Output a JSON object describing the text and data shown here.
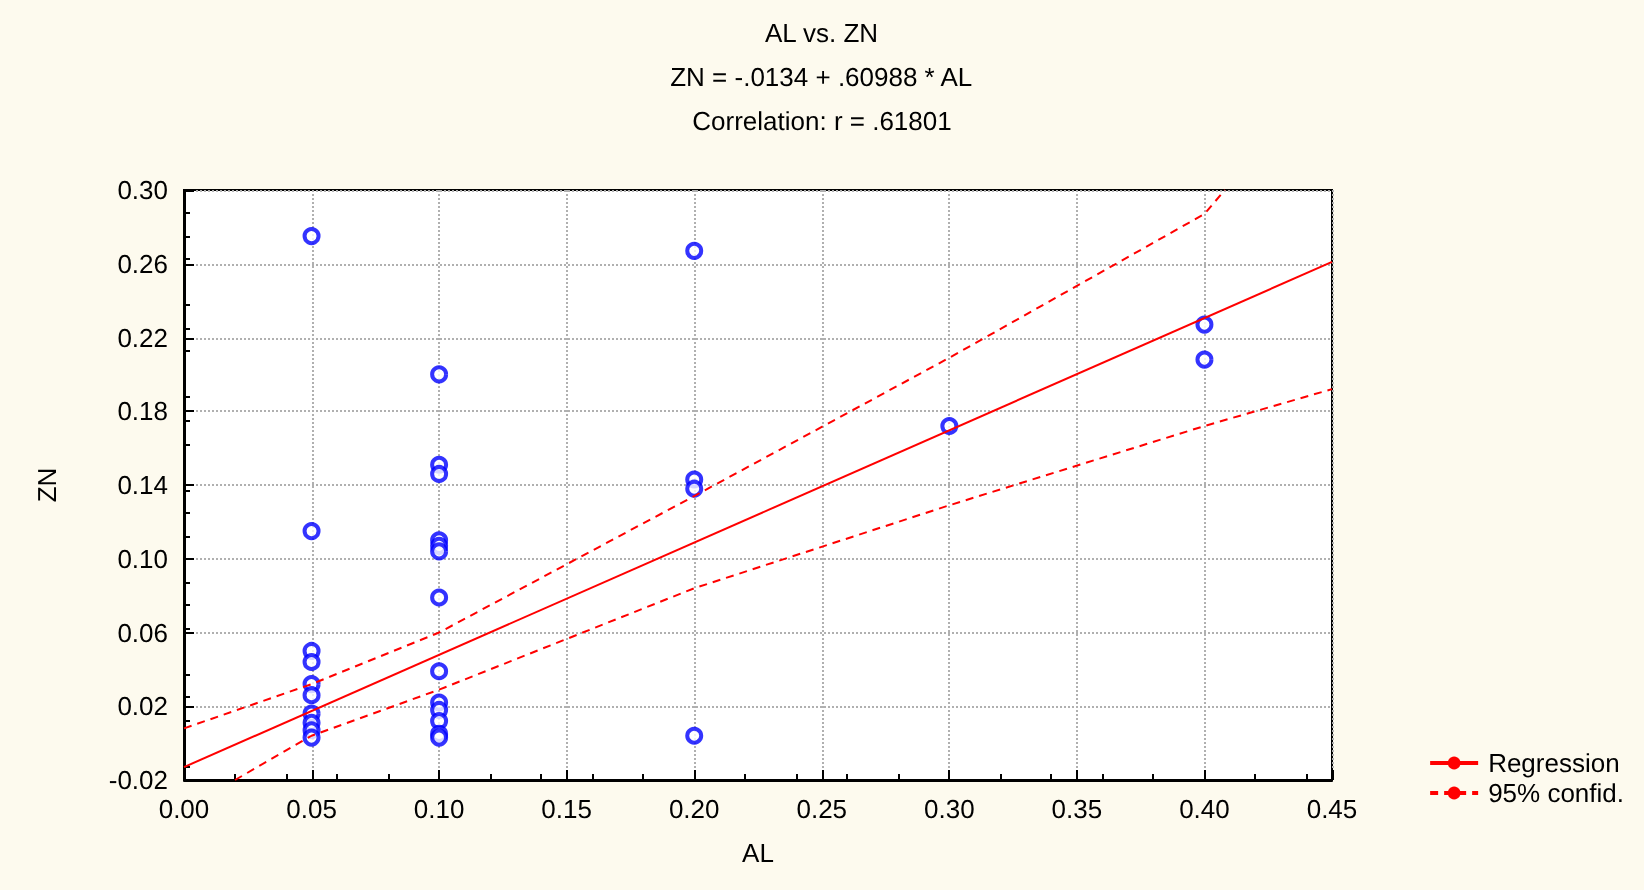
{
  "chart_data": {
    "type": "scatter",
    "title": "AL vs. ZN",
    "subtitle": "ZN = -.0134 + .60988 * AL",
    "annotations": [
      "Correlation: r = .61801"
    ],
    "xlabel": "AL",
    "ylabel": "ZN",
    "xlim": [
      0,
      0.45
    ],
    "ylim": [
      -0.02,
      0.3
    ],
    "xticks": [
      {
        "value": 0,
        "label": "0.00"
      },
      {
        "value": 0.05,
        "label": "0.05"
      },
      {
        "value": 0.1,
        "label": "0.10"
      },
      {
        "value": 0.15,
        "label": "0.15"
      },
      {
        "value": 0.2,
        "label": "0.20"
      },
      {
        "value": 0.25,
        "label": "0.25"
      },
      {
        "value": 0.3,
        "label": "0.30"
      },
      {
        "value": 0.35,
        "label": "0.35"
      },
      {
        "value": 0.4,
        "label": "0.40"
      },
      {
        "value": 0.45,
        "label": "0.45"
      }
    ],
    "yticks": [
      {
        "value": -0.02,
        "label": "-0.02"
      },
      {
        "value": 0.02,
        "label": "0.02"
      },
      {
        "value": 0.06,
        "label": "0.06"
      },
      {
        "value": 0.1,
        "label": "0.10"
      },
      {
        "value": 0.14,
        "label": "0.14"
      },
      {
        "value": 0.18,
        "label": "0.18"
      },
      {
        "value": 0.22,
        "label": "0.22"
      },
      {
        "value": 0.26,
        "label": "0.26"
      },
      {
        "value": 0.3,
        "label": "0.30"
      }
    ],
    "grid": true,
    "legend": "bottom right",
    "series": [
      {
        "marker": "circle",
        "color": "#0000ff",
        "x": [
          0.05,
          0.05,
          0.05,
          0.05,
          0.05,
          0.05,
          0.05,
          0.05,
          0.05,
          0.05,
          0.1,
          0.1,
          0.1,
          0.1,
          0.1,
          0.1,
          0.1,
          0.1,
          0.1,
          0.1,
          0.1,
          0.1,
          0.1,
          0.2,
          0.2,
          0.2,
          0.2,
          0.3,
          0.4,
          0.4
        ],
        "values": [
          0.275,
          0.115,
          0.05,
          0.044,
          0.032,
          0.026,
          0.016,
          0.011,
          0.007,
          0.003,
          0.2,
          0.151,
          0.146,
          0.11,
          0.107,
          0.104,
          0.079,
          0.039,
          0.022,
          0.018,
          0.012,
          0.005,
          0.003,
          0.267,
          0.143,
          0.138,
          0.004,
          0.172,
          0.227,
          0.208
        ]
      },
      {
        "type": "line",
        "name": "Regression",
        "color": "#ff0000",
        "marker": "none",
        "line_style": "solid",
        "x": [
          0,
          0.45
        ],
        "values": [
          -0.013,
          0.261
        ]
      },
      {
        "type": "line",
        "name": "95% confid.",
        "color": "#ff0000",
        "marker": "none",
        "line_style": "dashed",
        "x": [
          0,
          0.05,
          0.1,
          0.2,
          0.3,
          0.4,
          0.408
        ],
        "values": [
          0.008,
          0.032,
          0.06,
          0.134,
          0.209,
          0.287,
          0.3
        ]
      },
      {
        "type": "line",
        "color": "#ff0000",
        "marker": "none",
        "line_style": "dashed",
        "x": [
          0.02,
          0.05,
          0.1,
          0.2,
          0.3,
          0.4,
          0.45
        ],
        "values": [
          -0.02,
          0.004,
          0.029,
          0.084,
          0.129,
          0.172,
          0.192
        ]
      }
    ]
  }
}
